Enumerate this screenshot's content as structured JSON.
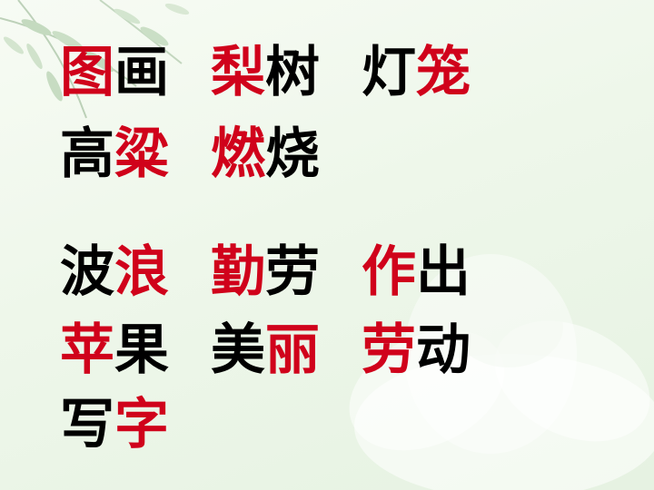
{
  "colors": {
    "black": "#000000",
    "red": "#d0021b"
  },
  "lines": [
    {
      "words": [
        [
          {
            "t": "图",
            "c": "red"
          },
          {
            "t": "画",
            "c": "black"
          }
        ],
        [
          {
            "t": "梨",
            "c": "red"
          },
          {
            "t": "树",
            "c": "black"
          }
        ],
        [
          {
            "t": "灯",
            "c": "black"
          },
          {
            "t": "笼",
            "c": "red"
          }
        ]
      ]
    },
    {
      "words": [
        [
          {
            "t": "高",
            "c": "black"
          },
          {
            "t": "粱",
            "c": "red"
          }
        ],
        [
          {
            "t": "燃",
            "c": "red"
          },
          {
            "t": "烧",
            "c": "black"
          }
        ]
      ]
    },
    {
      "words": [
        [
          {
            "t": "波",
            "c": "black"
          },
          {
            "t": "浪",
            "c": "red"
          }
        ],
        [
          {
            "t": "勤",
            "c": "red"
          },
          {
            "t": "劳",
            "c": "black"
          }
        ],
        [
          {
            "t": "作",
            "c": "red"
          },
          {
            "t": "出",
            "c": "black"
          }
        ]
      ]
    },
    {
      "words": [
        [
          {
            "t": "苹",
            "c": "red"
          },
          {
            "t": "果",
            "c": "black"
          }
        ],
        [
          {
            "t": "美",
            "c": "black"
          },
          {
            "t": "丽",
            "c": "red"
          }
        ],
        [
          {
            "t": "劳",
            "c": "red"
          },
          {
            "t": "动",
            "c": "black"
          }
        ]
      ]
    },
    {
      "words": [
        [
          {
            "t": "写",
            "c": "black"
          },
          {
            "t": "字",
            "c": "red"
          }
        ]
      ]
    }
  ]
}
